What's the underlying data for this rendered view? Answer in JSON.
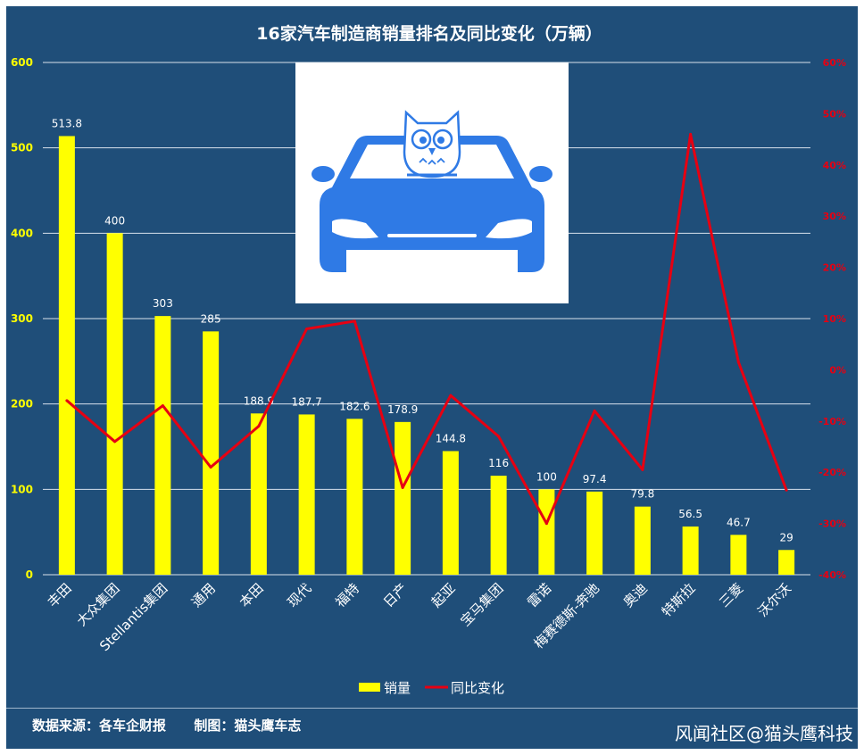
{
  "chart_data": {
    "type": "bar",
    "title": "16家汽车制造商销量排名及同比变化（万辆）",
    "categories": [
      "丰田",
      "大众集团",
      "Stellantis集团",
      "通用",
      "本田",
      "现代",
      "福特",
      "日产",
      "起亚",
      "宝马集团",
      "雷诺",
      "梅赛德斯-奔驰",
      "奥迪",
      "特斯拉",
      "三菱",
      "沃尔沃"
    ],
    "series": [
      {
        "name": "销量",
        "type": "bar",
        "axis": "left",
        "color": "#ffff00",
        "values": [
          513.8,
          400,
          303,
          285,
          188.9,
          187.7,
          182.6,
          178.9,
          144.8,
          116,
          100,
          97.4,
          79.8,
          56.5,
          46.7,
          29
        ],
        "labels": [
          "513.8",
          "400",
          "303",
          "285",
          "188.9",
          "187.7",
          "182.6",
          "178.9",
          "144.8",
          "116",
          "100",
          "97.4",
          "79.8",
          "56.5",
          "46.7",
          "29"
        ]
      },
      {
        "name": "同比变化",
        "type": "line",
        "axis": "right",
        "color": "#e60012",
        "values": [
          -6,
          -14,
          -7,
          -19,
          -11,
          8,
          9.5,
          -23,
          -5,
          -13,
          -30,
          -8,
          -19.5,
          46,
          1.5,
          -23.5
        ]
      }
    ],
    "y_left": {
      "min": 0,
      "max": 600,
      "ticks": [
        "0",
        "100",
        "200",
        "300",
        "400",
        "500",
        "600"
      ],
      "tick_color": "#ffff00"
    },
    "y_right": {
      "min": -40,
      "max": 60,
      "ticks": [
        "-40%",
        "-30%",
        "-20%",
        "-10%",
        "0%",
        "10%",
        "20%",
        "30%",
        "40%",
        "50%",
        "60%"
      ],
      "tick_color": "#e60012"
    },
    "grid": true,
    "legend": "bottom-center"
  },
  "legend": {
    "bar_label": "销量",
    "line_label": "同比变化"
  },
  "footer": {
    "source": "数据来源：各车企财报      制图：猫头鹰车志",
    "watermark": "风闻社区@猫头鹰科技"
  },
  "logo": {
    "icon": "owl-on-car-logo",
    "car_color": "#2f7ae5"
  }
}
